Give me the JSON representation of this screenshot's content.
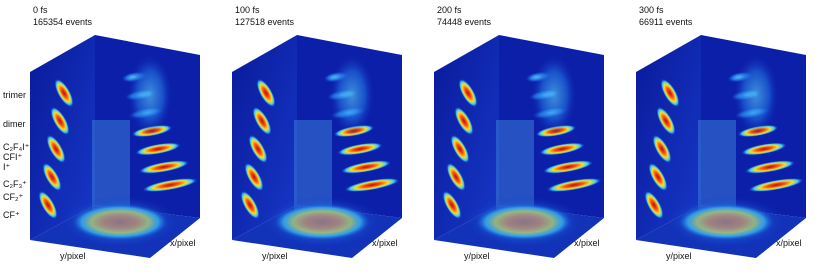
{
  "panels": [
    {
      "time": "0 fs",
      "events": "165354 events",
      "y_axis": "y/pixel",
      "x_axis": "x/pixel"
    },
    {
      "time": "100 fs",
      "events": "127518 events",
      "y_axis": "y/pixel",
      "x_axis": "x/pixel"
    },
    {
      "time": "200 fs",
      "events": "74448 events",
      "y_axis": "y/pixel",
      "x_axis": "x/pixel"
    },
    {
      "time": "300 fs",
      "events": "66911 events",
      "y_axis": "y/pixel",
      "x_axis": "x/pixel"
    }
  ],
  "species_labels": [
    "trimer",
    "dimer",
    "C₂F₄I⁺",
    "CFI⁺",
    "I⁺",
    "C₂F₃⁺",
    "CF₂⁺",
    "CF⁺"
  ]
}
